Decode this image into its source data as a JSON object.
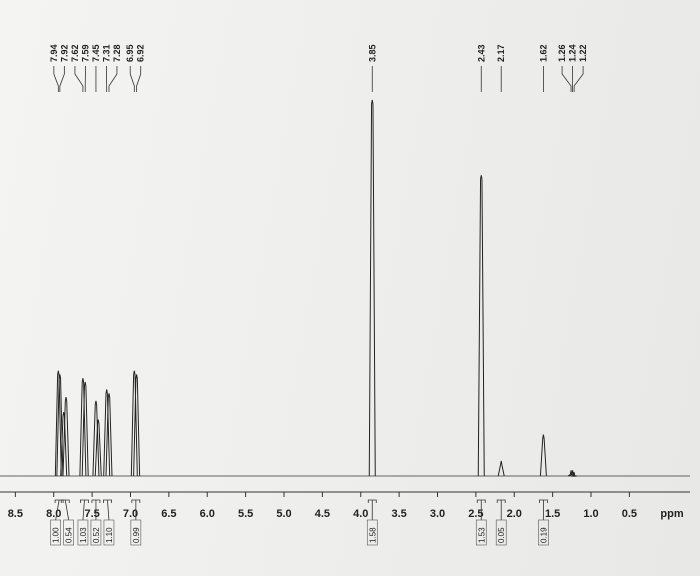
{
  "chart_data": {
    "type": "nmr",
    "xlabel": "ppm",
    "xlim": [
      8.7,
      -0.42
    ],
    "xticks": [
      8.5,
      8.0,
      7.5,
      7.0,
      6.5,
      6.0,
      5.5,
      5.0,
      4.5,
      4.0,
      3.5,
      3.0,
      2.5,
      2.0,
      1.5,
      1.0,
      0.5
    ],
    "xtick_labels": [
      "8.5",
      "8.0",
      "7.5",
      "7.0",
      "6.5",
      "6.0",
      "5.5",
      "5.0",
      "4.5",
      "4.0",
      "3.5",
      "3.0",
      "2.5",
      "2.0",
      "1.5",
      "1.0",
      "0.5"
    ],
    "ylim": [
      0,
      100
    ],
    "color": "#222222",
    "peak_labels": [
      7.94,
      7.92,
      7.62,
      7.59,
      7.45,
      7.31,
      7.28,
      6.95,
      6.92,
      3.85,
      2.43,
      2.17,
      1.62,
      1.26,
      1.24,
      1.22
    ],
    "peaks": {
      "x": [
        7.94,
        7.92,
        7.87,
        7.84,
        7.62,
        7.59,
        7.45,
        7.42,
        7.31,
        7.28,
        6.95,
        6.92,
        3.85,
        2.43,
        2.17,
        1.62,
        1.26,
        1.24,
        1.22
      ],
      "values": [
        28,
        27,
        17,
        21,
        26,
        25,
        20,
        15,
        23,
        22,
        28,
        27,
        100,
        80,
        4,
        11,
        1.5,
        1.5,
        1
      ]
    },
    "integrals": {
      "x": [
        7.93,
        7.85,
        7.6,
        7.45,
        7.3,
        6.93,
        3.85,
        2.43,
        2.17,
        1.62
      ],
      "values": [
        1.0,
        0.54,
        1.03,
        0.52,
        1.1,
        0.99,
        1.58,
        1.53,
        0.05,
        0.19
      ],
      "value_labels": [
        "1.00",
        "0.54",
        "1.03",
        "0.52",
        "1.10",
        "0.99",
        "1.58",
        "1.53",
        "0.05",
        "0.19"
      ]
    }
  }
}
